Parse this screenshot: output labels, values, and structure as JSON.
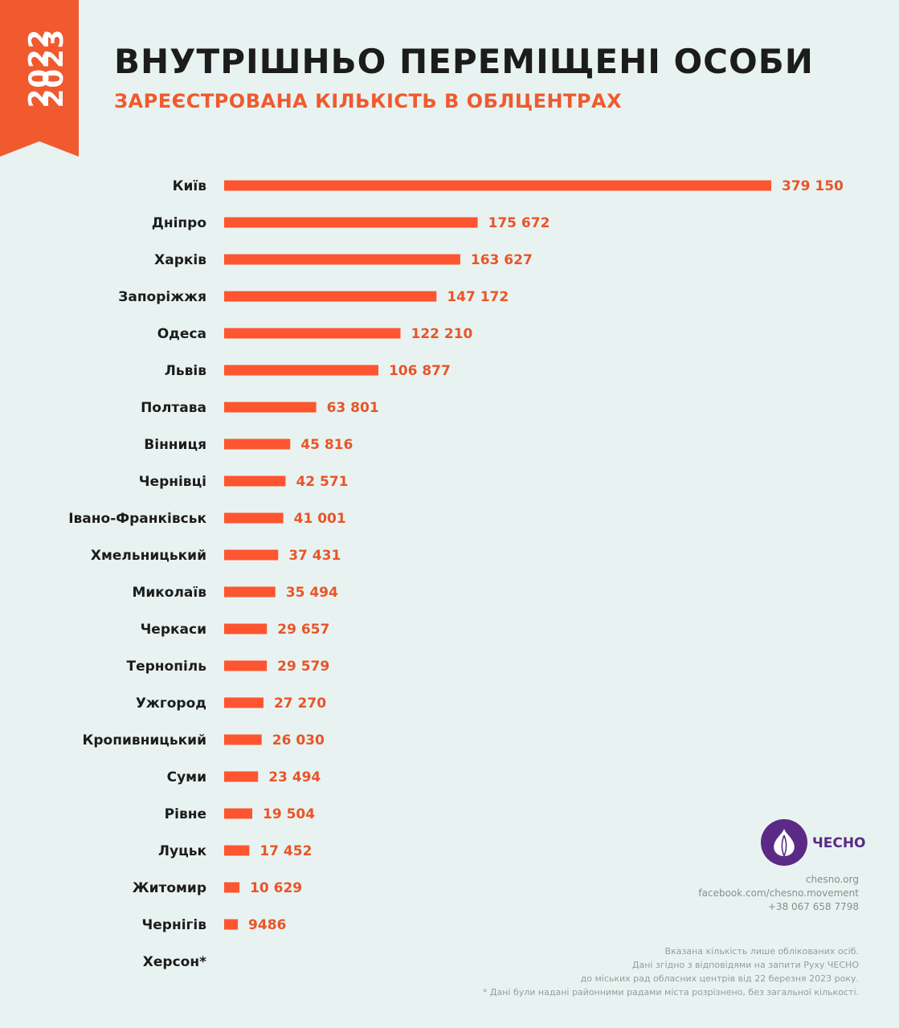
{
  "header": {
    "years": [
      "2022",
      "2023"
    ],
    "title": "ВНУТРІШНЬО ПЕРЕМІЩЕНІ ОСОБИ",
    "subtitle": "ЗАРЕЄСТРОВАНА КІЛЬКІСТЬ В ОБЛЦЕНТРАХ"
  },
  "colors": {
    "bar": "#fd5530",
    "value_text": "#ea5428",
    "accent": "#f05a2e",
    "brand": "#5b2a86",
    "background": "#e8f3f1"
  },
  "chart_data": {
    "type": "bar",
    "orientation": "horizontal",
    "categories": [
      "Київ",
      "Дніпро",
      "Харків",
      "Запоріжжя",
      "Одеса",
      "Львів",
      "Полтава",
      "Вінниця",
      "Чернівці",
      "Івано-Франківськ",
      "Хмельницький",
      "Миколаїв",
      "Черкаси",
      "Тернопіль",
      "Ужгород",
      "Кропивницький",
      "Суми",
      "Рівне",
      "Луцьк",
      "Житомир",
      "Чернігів",
      "Херсон*"
    ],
    "values": [
      379150,
      175672,
      163627,
      147172,
      122210,
      106877,
      63801,
      45816,
      42571,
      41001,
      37431,
      35494,
      29657,
      29579,
      27270,
      26030,
      23494,
      19504,
      17452,
      10629,
      9486,
      null
    ],
    "labels": [
      "379 150",
      "175 672",
      "163 627",
      "147 172",
      "122 210",
      "106 877",
      "63 801",
      "45 816",
      "42 571",
      "41 001",
      "37 431",
      "35 494",
      "29 657",
      "29 579",
      "27 270",
      "26 030",
      "23 494",
      "19 504",
      "17 452",
      "10 629",
      "9486",
      ""
    ],
    "grid": false
  },
  "brand": {
    "name": "ЧЕСНО",
    "icon": "garlic-icon",
    "contacts": [
      "chesno.org",
      "facebook.com/chesno.movement",
      "+38 067 658 7798"
    ]
  },
  "notes": [
    "Вказана кількість лише облікованих осіб.",
    "Дані згідно з відповідями на запити Руху ЧЕСНО",
    "до міських рад обласних центрів від 22 березня 2023 року.",
    "* Дані були надані районними радами міста розрізнено, без загальної кількості."
  ]
}
